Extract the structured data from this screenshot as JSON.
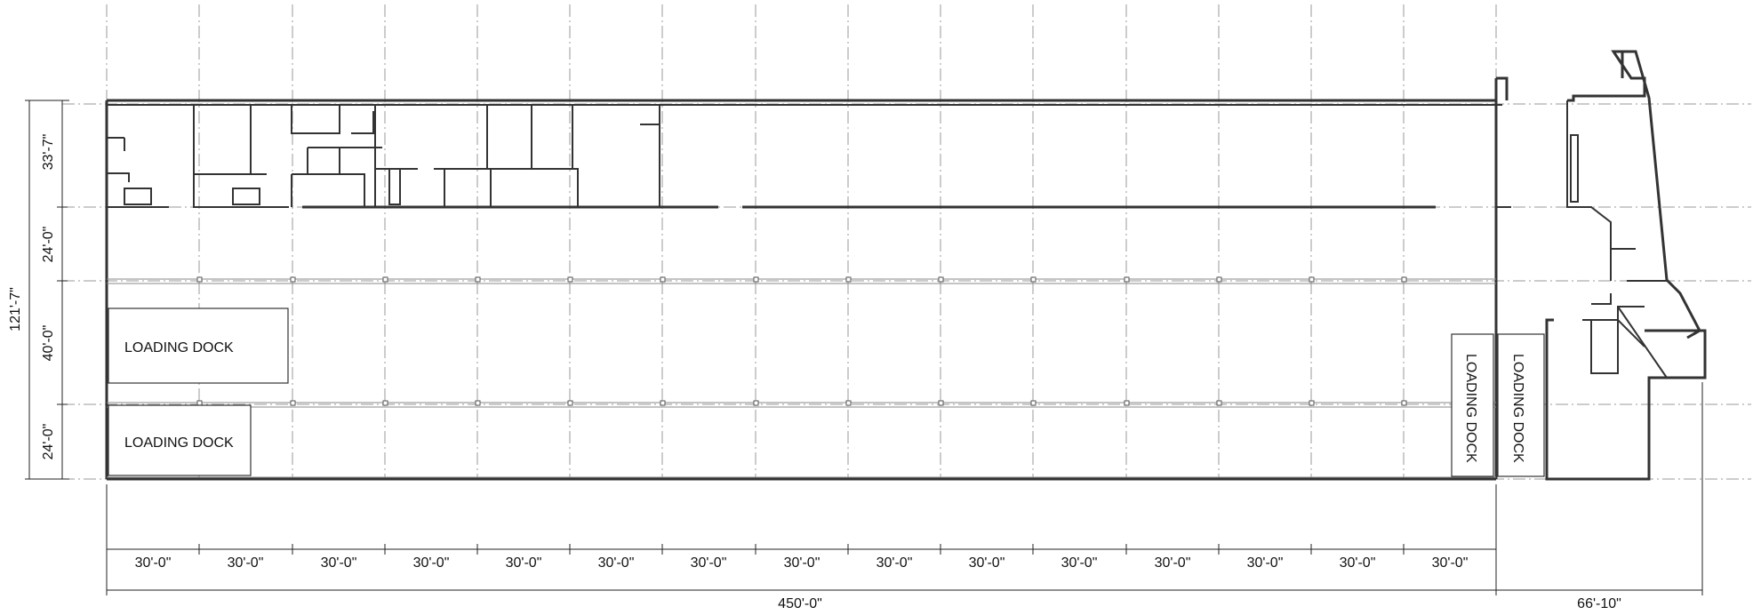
{
  "plan": {
    "overall_depth": "121'-7\"",
    "left_dims": [
      "33'-7\"",
      "24'-0\"",
      "40'-0\"",
      "24'-0\""
    ],
    "bay_dims": [
      "30'-0\"",
      "30'-0\"",
      "30'-0\"",
      "30'-0\"",
      "30'-0\"",
      "30'-0\"",
      "30'-0\"",
      "30'-0\"",
      "30'-0\"",
      "30'-0\"",
      "30'-0\"",
      "30'-0\"",
      "30'-0\"",
      "30'-0\"",
      "30'-0\""
    ],
    "overall_length": "450'-0\"",
    "annex_length": "66'-10\"",
    "dock_labels": [
      "LOADING DOCK",
      "LOADING DOCK",
      "LOADING DOCK",
      "LOADING DOCK"
    ]
  }
}
